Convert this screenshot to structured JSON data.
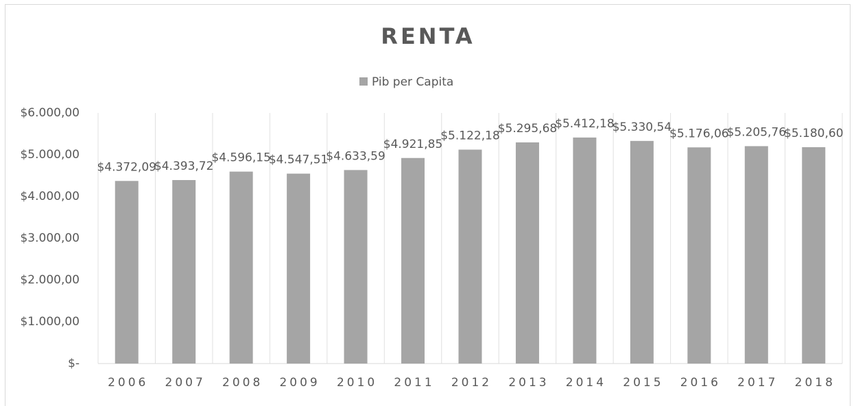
{
  "chart_data": {
    "type": "bar",
    "title": "RENTA",
    "series": [
      {
        "name": "Pib per Capita",
        "color": "#a5a5a5",
        "values": [
          4372.09,
          4393.72,
          4596.15,
          4547.51,
          4633.59,
          4921.85,
          5122.18,
          5295.68,
          5412.18,
          5330.54,
          5176.06,
          5205.76,
          5180.6
        ],
        "value_labels": [
          "$4.372,09",
          "$4.393,72",
          "$4.596,15",
          "$4.547,51",
          "$4.633,59",
          "$4.921,85",
          "$5.122,18",
          "$5.295,68",
          "$5.412,18",
          "$5.330,54",
          "$5.176,06",
          "$5.205,76",
          "$5.180,60"
        ]
      }
    ],
    "categories": [
      "2006",
      "2007",
      "2008",
      "2009",
      "2010",
      "2011",
      "2012",
      "2013",
      "2014",
      "2015",
      "2016",
      "2017",
      "2018"
    ],
    "ylim": [
      0,
      6000
    ],
    "yticks": [
      {
        "value": 0,
        "label": "$-"
      },
      {
        "value": 1000,
        "label": "$1.000,00"
      },
      {
        "value": 2000,
        "label": "$2.000,00"
      },
      {
        "value": 3000,
        "label": "$3.000,00"
      },
      {
        "value": 4000,
        "label": "$4.000,00"
      },
      {
        "value": 5000,
        "label": "$5.000,00"
      },
      {
        "value": 6000,
        "label": "$6.000,00"
      }
    ],
    "legend": "top"
  }
}
